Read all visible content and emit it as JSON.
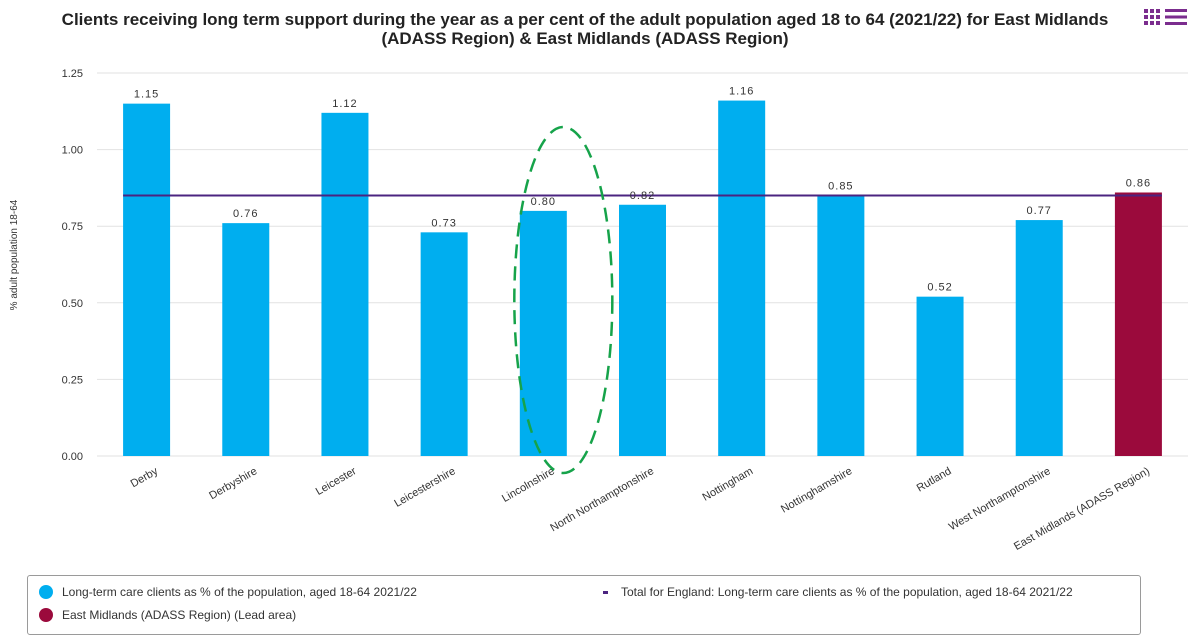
{
  "chart_data": {
    "type": "bar",
    "title": "Clients receiving long term support during the year as a per cent of the adult population aged 18 to 64 (2021/22) for East Midlands (ADASS Region) & East Midlands (ADASS Region)",
    "ylabel": "% adult population 18-64",
    "xlabel": "",
    "ylim": [
      0,
      1.25
    ],
    "yticks": [
      "0.00",
      "0.25",
      "0.50",
      "0.75",
      "1.00",
      "1.25"
    ],
    "grid": true,
    "categories": [
      "Derby",
      "Derbyshire",
      "Leicester",
      "Leicestershire",
      "Lincolnshire",
      "North Northamptonshire",
      "Nottingham",
      "Nottinghamshire",
      "Rutland",
      "West Northamptonshire",
      "East Midlands (ADASS Region)"
    ],
    "series": [
      {
        "name": "Long-term care clients as % of the population, aged 18-64 2021/22",
        "values": [
          1.15,
          0.76,
          1.12,
          0.73,
          0.8,
          0.82,
          1.16,
          0.85,
          0.52,
          0.77,
          0.86
        ],
        "labels": [
          "1.15",
          "0.76",
          "1.12",
          "0.73",
          "0.80",
          "0.82",
          "1.16",
          "0.85",
          "0.52",
          "0.77",
          "0.86"
        ]
      }
    ],
    "reference_line": {
      "name": "Total for England: Long-term care clients as % of the population, aged 18-64 2021/22",
      "value": 0.85
    },
    "lead_area": {
      "name": "East Midlands (ADASS Region) (Lead area)",
      "category": "East Midlands (ADASS Region)"
    },
    "highlight_category": "Lincolnshire",
    "legend_position": "bottom"
  },
  "colors": {
    "bar": "#00aeef",
    "lead_bar": "#9b0a3c",
    "reference_line": "#4b2480",
    "grid": "#e2e2e2",
    "highlight_ellipse": "#16a34a",
    "menu_icon": "#7b2d8e"
  },
  "icons": {
    "menu": "grid-menu-icon"
  }
}
